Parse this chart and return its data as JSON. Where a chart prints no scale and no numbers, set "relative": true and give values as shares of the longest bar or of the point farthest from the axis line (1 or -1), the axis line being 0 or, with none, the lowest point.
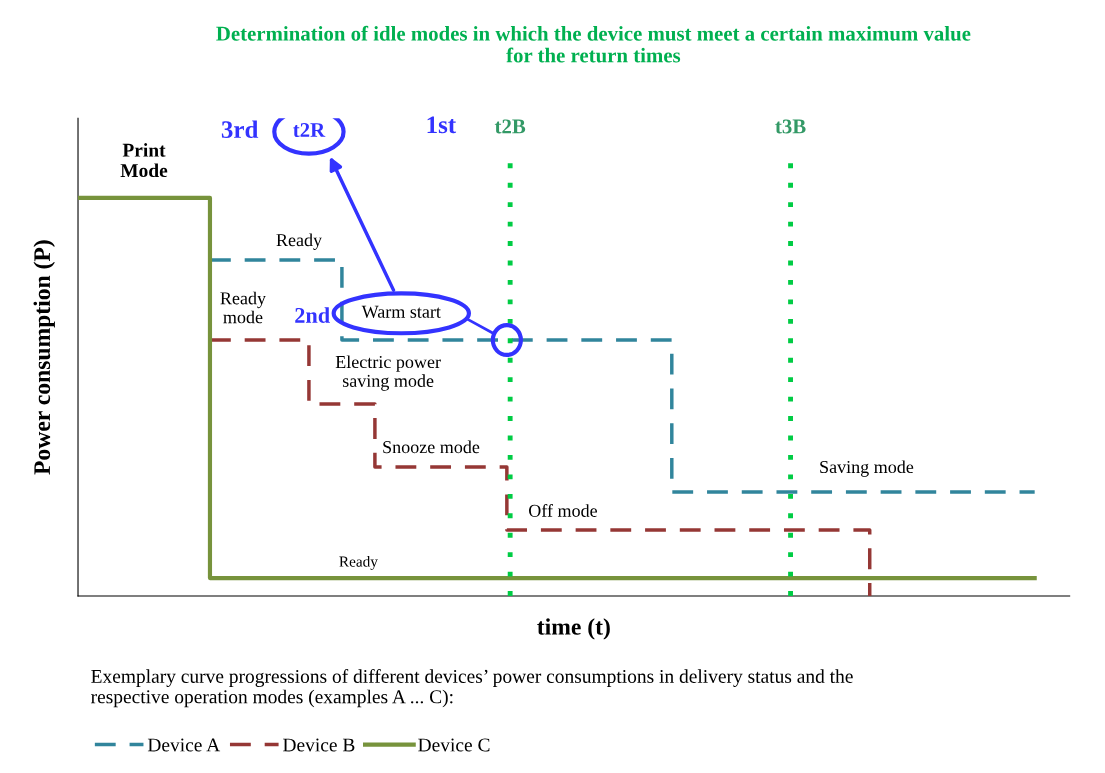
{
  "chart_data": {
    "type": "step",
    "title": "Determination of idle modes in which the device must meet a certain maximum value\nfor the return times",
    "xlabel": "time (t)",
    "ylabel": "Power consumption (P)",
    "relative": true,
    "legend": "bottom",
    "marker": "none",
    "categories": [
      null,
      null,
      null,
      null,
      null,
      null,
      null,
      null,
      null,
      null,
      null,
      null,
      null,
      null,
      null,
      null,
      null,
      null,
      null,
      null,
      null,
      null,
      null,
      null,
      null,
      null,
      null,
      null,
      null,
      null
    ],
    "series": [
      {
        "name": "Device A",
        "color": "#31859c",
        "line_style": "dashed",
        "values": [
          null,
          null,
          null,
          null,
          0.844,
          0.844,
          0.844,
          0.844,
          0.643,
          0.643,
          0.643,
          0.643,
          0.643,
          0.643,
          0.643,
          0.643,
          0.643,
          0.643,
          0.261,
          0.261,
          0.261,
          0.261,
          0.261,
          0.261,
          0.261,
          0.261,
          0.261,
          0.261,
          0.261,
          0.261
        ]
      },
      {
        "name": "Device B",
        "color": "#953735",
        "line_style": "dashed",
        "values": [
          null,
          null,
          null,
          null,
          0.643,
          0.643,
          0.643,
          0.482,
          0.482,
          0.324,
          0.324,
          0.324,
          0.324,
          0.166,
          0.166,
          0.166,
          0.166,
          0.166,
          0.166,
          0.166,
          0.166,
          0.166,
          0.166,
          0.166,
          0,
          null,
          null,
          null,
          null,
          null
        ]
      },
      {
        "name": "Device C",
        "color": "#77933c",
        "line_style": "solid",
        "values": [
          1,
          1,
          1,
          1,
          0.045,
          0.045,
          0.045,
          0.045,
          0.045,
          0.045,
          0.045,
          0.045,
          0.045,
          0.045,
          0.045,
          0.045,
          0.045,
          0.045,
          0.045,
          0.045,
          0.045,
          0.045,
          0.045,
          0.045,
          0.045,
          0.045,
          0.045,
          0.045,
          0.045,
          0.045
        ]
      }
    ],
    "annotations": [
      "t2B",
      "t3B",
      "Print\nMode",
      "Ready",
      "Ready\nmode",
      "Electric power\nsaving mode",
      "Snooze mode",
      "Off mode",
      "Saving mode",
      "Ready",
      "Warm start",
      "1st",
      "2nd",
      "3rd",
      "t2R",
      "Exemplary curve progressions of different devices’ power consumptions in delivery status and the\nrespective operation modes (examples A ... C):"
    ]
  }
}
